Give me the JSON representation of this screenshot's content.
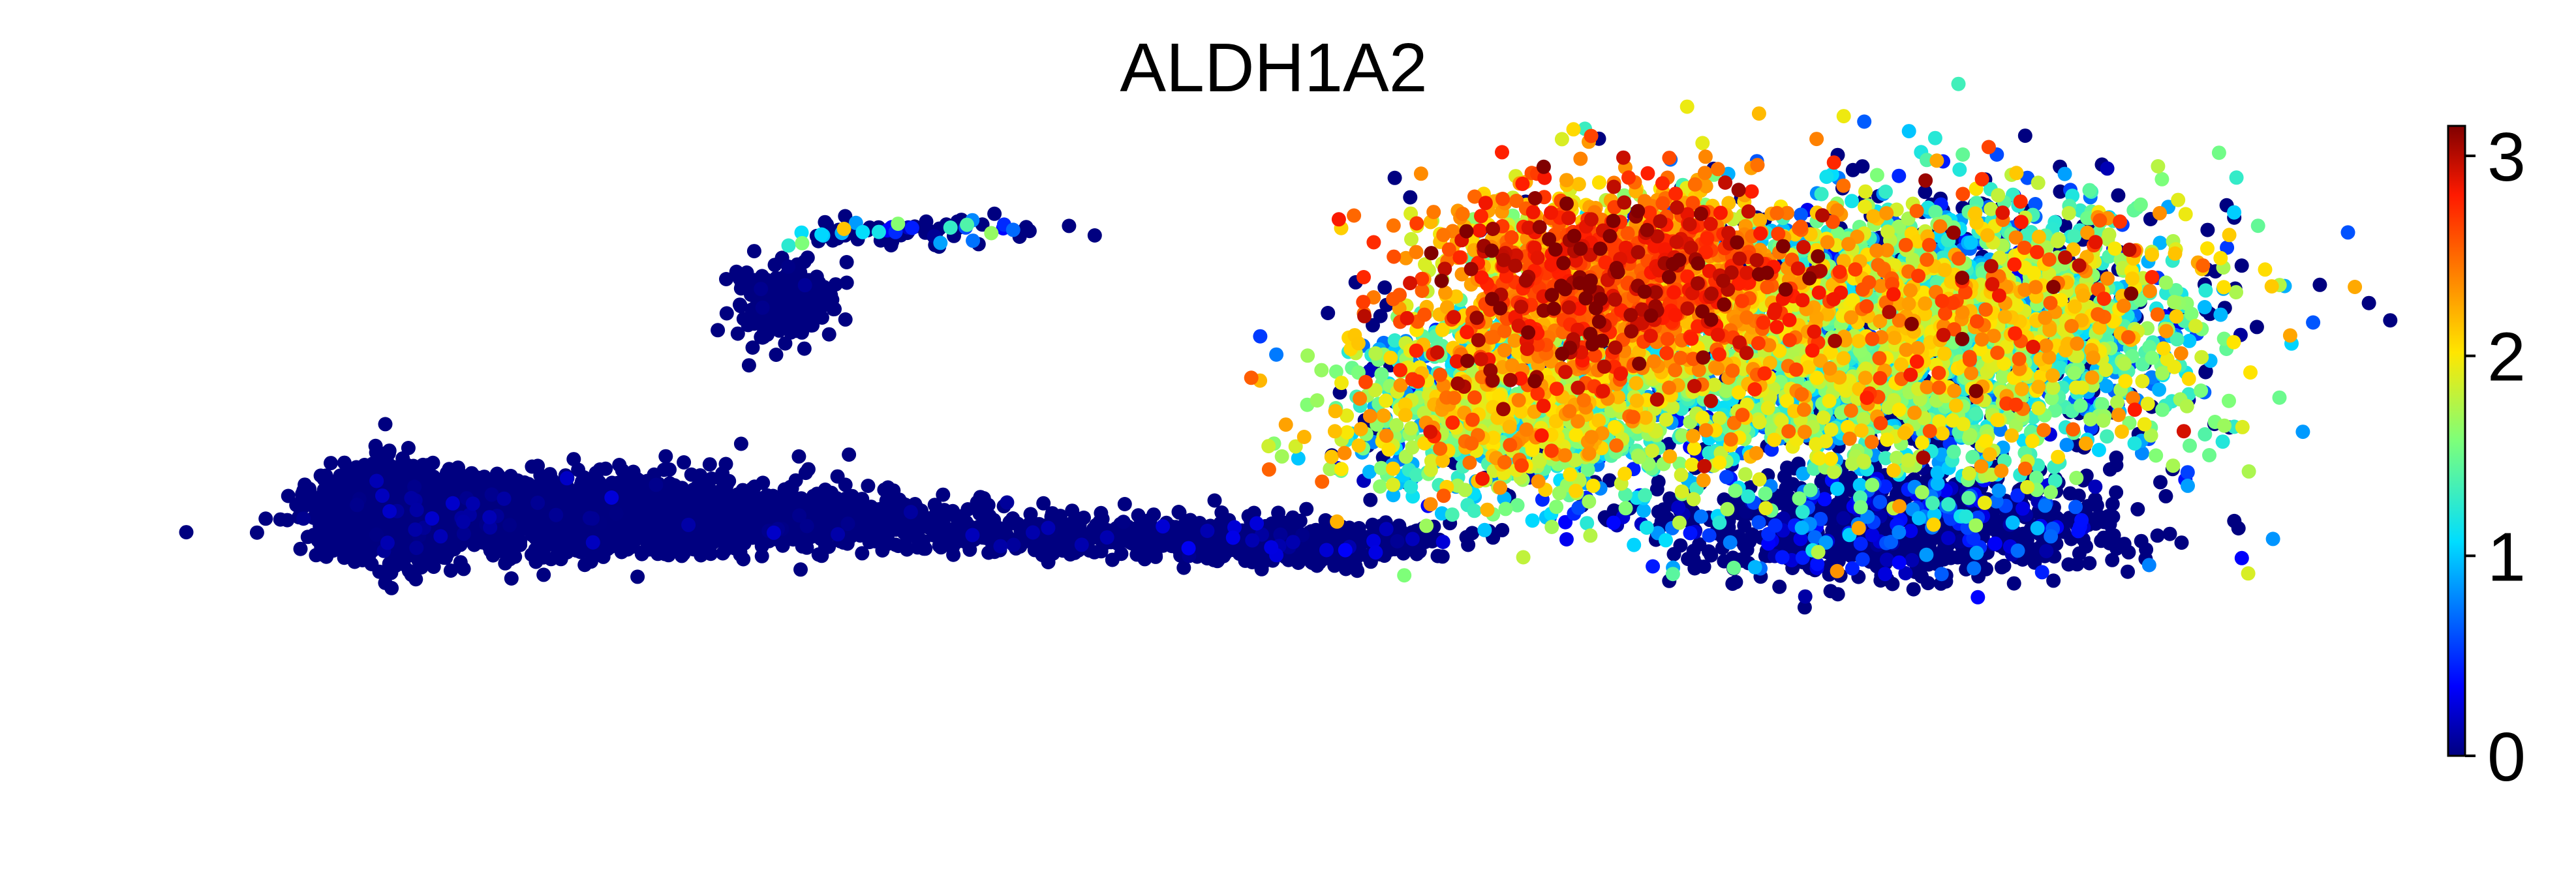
{
  "chart_data": {
    "type": "scatter",
    "title": "ALDH1A2",
    "xlabel": "",
    "ylabel": "",
    "axes_visible": false,
    "grid": false,
    "colormap": "jet",
    "color_range": [
      0,
      3.15
    ],
    "colorbar": {
      "position": "right",
      "ticks": [
        0,
        1,
        2,
        3
      ],
      "tick_labels": [
        "0",
        "1",
        "2",
        "3"
      ]
    },
    "clusters": [
      {
        "name": "",
        "cx": 0.085,
        "cy": 0.385,
        "sx": 0.018,
        "sy": 0.038,
        "n": 1100,
        "expr_mean": 0.02,
        "expr_sd": 0.08,
        "high_frac": 0.03
      },
      {
        "name": "",
        "cx": 0.18,
        "cy": 0.38,
        "sx": 0.05,
        "sy": 0.032,
        "n": 1700,
        "expr_mean": 0.02,
        "expr_sd": 0.08,
        "high_frac": 0.03
      },
      {
        "name": "",
        "cx": 0.28,
        "cy": 0.37,
        "sx": 0.035,
        "sy": 0.02,
        "n": 450,
        "expr_mean": 0.02,
        "expr_sd": 0.08,
        "high_frac": 0.03
      },
      {
        "name": "",
        "cx": 0.4,
        "cy": 0.345,
        "sx": 0.05,
        "sy": 0.016,
        "n": 350,
        "expr_mean": 0.05,
        "expr_sd": 0.1,
        "high_frac": 0.06
      },
      {
        "name": "",
        "cx": 0.51,
        "cy": 0.33,
        "sx": 0.04,
        "sy": 0.018,
        "n": 400,
        "expr_mean": 0.1,
        "expr_sd": 0.15,
        "high_frac": 0.12
      },
      {
        "name": "",
        "cx": 0.27,
        "cy": 0.74,
        "sx": 0.012,
        "sy": 0.03,
        "n": 220,
        "expr_mean": 0.02,
        "expr_sd": 0.05,
        "high_frac": 0.02
      },
      {
        "name": "",
        "cx": 0.33,
        "cy": 0.86,
        "sx": 0.035,
        "sy": 0.01,
        "n": 90,
        "expr_mean": 0.6,
        "expr_sd": 0.6,
        "high_frac": 0.3
      },
      {
        "name": "",
        "cx": 0.665,
        "cy": 0.78,
        "sx": 0.045,
        "sy": 0.08,
        "n": 1700,
        "expr_mean": 2.35,
        "expr_sd": 0.4,
        "high_frac": 0.96
      },
      {
        "name": "",
        "cx": 0.62,
        "cy": 0.56,
        "sx": 0.045,
        "sy": 0.08,
        "n": 1300,
        "expr_mean": 1.5,
        "expr_sd": 0.55,
        "high_frac": 0.9
      },
      {
        "name": "",
        "cx": 0.79,
        "cy": 0.66,
        "sx": 0.07,
        "sy": 0.12,
        "n": 2600,
        "expr_mean": 1.35,
        "expr_sd": 0.55,
        "high_frac": 0.82
      },
      {
        "name": "",
        "cx": 0.8,
        "cy": 0.36,
        "sx": 0.055,
        "sy": 0.045,
        "n": 900,
        "expr_mean": 0.3,
        "expr_sd": 0.35,
        "high_frac": 0.25
      },
      {
        "name": "",
        "cx": 0.84,
        "cy": 0.74,
        "sx": 0.05,
        "sy": 0.09,
        "n": 900,
        "expr_mean": 1.6,
        "expr_sd": 0.6,
        "high_frac": 0.85
      }
    ]
  }
}
